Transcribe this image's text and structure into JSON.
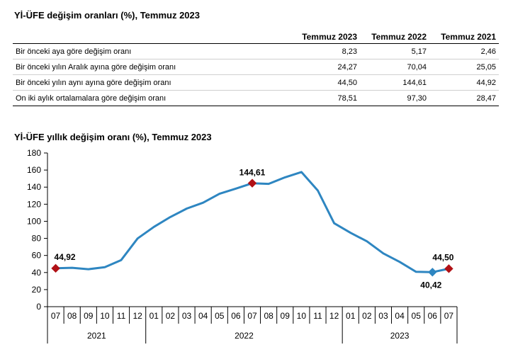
{
  "table": {
    "title": "Yİ-ÜFE değişim oranları (%), Temmuz 2023",
    "headers": [
      "Temmuz 2023",
      "Temmuz 2022",
      "Temmuz 2021"
    ],
    "rows": [
      {
        "label": "Bir önceki aya göre değişim oranı",
        "values": [
          "8,23",
          "5,17",
          "2,46"
        ]
      },
      {
        "label": "Bir önceki yılın Aralık ayına göre değişim oranı",
        "values": [
          "24,27",
          "70,04",
          "25,05"
        ]
      },
      {
        "label": "Bir önceki yılın aynı ayına göre değişim oranı",
        "values": [
          "44,50",
          "144,61",
          "44,92"
        ]
      },
      {
        "label": "On iki aylık ortalamalara göre değişim oranı",
        "values": [
          "78,51",
          "97,30",
          "28,47"
        ]
      }
    ]
  },
  "chart_data": {
    "type": "line",
    "title": "Yİ-ÜFE yıllık değişim oranı (%), Temmuz 2023",
    "x_months": [
      "07",
      "08",
      "09",
      "10",
      "11",
      "12",
      "01",
      "02",
      "03",
      "04",
      "05",
      "06",
      "07",
      "08",
      "09",
      "10",
      "11",
      "12",
      "01",
      "02",
      "03",
      "04",
      "05",
      "06",
      "07"
    ],
    "x_groups": [
      {
        "label": "2021",
        "start": 0,
        "end": 5
      },
      {
        "label": "2022",
        "start": 6,
        "end": 17
      },
      {
        "label": "2023",
        "start": 18,
        "end": 24
      }
    ],
    "values": [
      44.92,
      45.5,
      43.9,
      46.3,
      54.6,
      79.9,
      93.5,
      105.0,
      114.9,
      121.8,
      132.2,
      138.3,
      144.61,
      143.8,
      151.5,
      157.7,
      136.0,
      97.7,
      86.5,
      76.6,
      62.4,
      52.4,
      40.8,
      40.42,
      44.5
    ],
    "highlights": [
      {
        "index": 0,
        "label": "44,92",
        "color": "#b11116"
      },
      {
        "index": 12,
        "label": "144,61",
        "color": "#b11116"
      },
      {
        "index": 23,
        "label": "40,42",
        "color": "#2e86c1"
      },
      {
        "index": 24,
        "label": "44,50",
        "color": "#b11116"
      }
    ],
    "ylim": [
      0,
      180
    ],
    "yticks": [
      0,
      20,
      40,
      60,
      80,
      100,
      120,
      140,
      160,
      180
    ],
    "line_color": "#2e86c1",
    "grid": false
  }
}
